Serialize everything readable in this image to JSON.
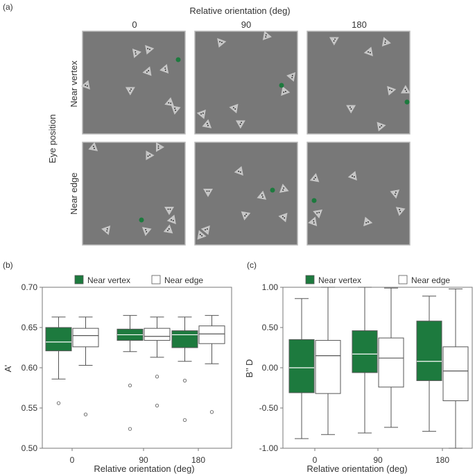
{
  "figure_a": {
    "panel_label": "(a)",
    "column_title": "Relative orientation (deg)",
    "columns": [
      "0",
      "90",
      "180"
    ],
    "row_title": "Eye position",
    "rows": [
      "Near vertex",
      "Near edge"
    ],
    "colors": {
      "panel_bg": "#787878",
      "panel_border": "#b8b8b8",
      "shape": "#c6c6c6",
      "dot": "#1d7a3e"
    }
  },
  "colors": {
    "green": "#1d7a3e",
    "white": "#ffffff",
    "line": "#555555",
    "axis": "#777777"
  },
  "chart_data": [
    {
      "type": "box",
      "panel_label": "(b)",
      "title": "",
      "xlabel": "Relative orientation (deg)",
      "ylabel": "A’",
      "ylim": [
        0.5,
        0.7
      ],
      "yticks": [
        "0.50",
        "0.55",
        "0.60",
        "0.65",
        "0.70"
      ],
      "ytick_values": [
        0.5,
        0.55,
        0.6,
        0.65,
        0.7
      ],
      "categories": [
        "0",
        "90",
        "180"
      ],
      "legend": [
        "Near vertex",
        "Near edge"
      ],
      "series": [
        {
          "name": "Near vertex",
          "boxes": [
            {
              "q1": 0.621,
              "median": 0.632,
              "q3": 0.65,
              "whisker_low": 0.586,
              "whisker_high": 0.663,
              "outliers": [
                0.556
              ]
            },
            {
              "q1": 0.634,
              "median": 0.641,
              "q3": 0.648,
              "whisker_low": 0.62,
              "whisker_high": 0.665,
              "outliers": [
                0.578,
                0.524
              ]
            },
            {
              "q1": 0.625,
              "median": 0.641,
              "q3": 0.646,
              "whisker_low": 0.608,
              "whisker_high": 0.663,
              "outliers": [
                0.584,
                0.535
              ]
            }
          ]
        },
        {
          "name": "Near edge",
          "boxes": [
            {
              "q1": 0.626,
              "median": 0.64,
              "q3": 0.649,
              "whisker_low": 0.603,
              "whisker_high": 0.663,
              "outliers": [
                0.542
              ]
            },
            {
              "q1": 0.634,
              "median": 0.639,
              "q3": 0.649,
              "whisker_low": 0.613,
              "whisker_high": 0.663,
              "outliers": [
                0.589,
                0.553
              ]
            },
            {
              "q1": 0.63,
              "median": 0.642,
              "q3": 0.652,
              "whisker_low": 0.605,
              "whisker_high": 0.665,
              "outliers": [
                0.545
              ]
            }
          ]
        }
      ]
    },
    {
      "type": "box",
      "panel_label": "(c)",
      "title": "",
      "xlabel": "Relative orientation (deg)",
      "ylabel": "B’’ D",
      "ylim": [
        -1.0,
        1.0
      ],
      "yticks": [
        "-1.00",
        "-0.50",
        "0.00",
        "0.50",
        "1.00"
      ],
      "ytick_values": [
        -1.0,
        -0.5,
        0.0,
        0.5,
        1.0
      ],
      "categories": [
        "0",
        "90",
        "180"
      ],
      "legend": [
        "Near vertex",
        "Near edge"
      ],
      "series": [
        {
          "name": "Near vertex",
          "boxes": [
            {
              "q1": -0.31,
              "median": 0.0,
              "q3": 0.35,
              "whisker_low": -0.88,
              "whisker_high": 0.86,
              "outliers": []
            },
            {
              "q1": -0.06,
              "median": 0.17,
              "q3": 0.46,
              "whisker_low": -0.81,
              "whisker_high": 1.0,
              "outliers": []
            },
            {
              "q1": -0.16,
              "median": 0.08,
              "q3": 0.58,
              "whisker_low": -0.79,
              "whisker_high": 0.89,
              "outliers": []
            }
          ]
        },
        {
          "name": "Near edge",
          "boxes": [
            {
              "q1": -0.32,
              "median": 0.15,
              "q3": 0.34,
              "whisker_low": -0.83,
              "whisker_high": 1.0,
              "outliers": []
            },
            {
              "q1": -0.24,
              "median": 0.12,
              "q3": 0.37,
              "whisker_low": -0.74,
              "whisker_high": 0.99,
              "outliers": []
            },
            {
              "q1": -0.41,
              "median": -0.04,
              "q3": 0.26,
              "whisker_low": -1.0,
              "whisker_high": 0.98,
              "outliers": []
            }
          ]
        }
      ]
    }
  ]
}
